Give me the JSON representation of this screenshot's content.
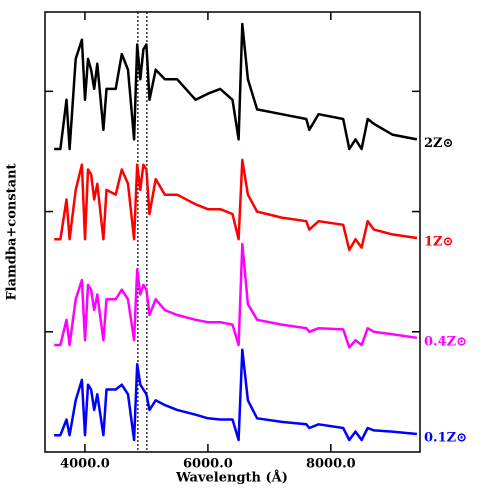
{
  "chart_data": {
    "type": "line",
    "xlabel": "Wavelength (Å)",
    "ylabel": "Flamdba+constant",
    "x": [
      3500,
      3600,
      3700,
      3750,
      3850,
      3950,
      4000,
      4050,
      4100,
      4150,
      4200,
      4300,
      4350,
      4500,
      4600,
      4700,
      4800,
      4850,
      4900,
      4950,
      5000,
      5050,
      5150,
      5300,
      5500,
      5800,
      6000,
      6200,
      6400,
      6500,
      6560,
      6650,
      6800,
      7200,
      7600,
      7650,
      7800,
      8200,
      8300,
      8400,
      8500,
      8600,
      8700,
      9000,
      9400
    ],
    "series": [
      {
        "name": "2Z⊙",
        "color": "#000000",
        "values": [
          2.52,
          2.52,
          2.93,
          2.52,
          3.27,
          3.43,
          2.93,
          3.27,
          3.18,
          3.02,
          3.23,
          2.68,
          3.02,
          3.02,
          3.31,
          3.18,
          2.6,
          3.39,
          3.1,
          3.35,
          3.39,
          2.93,
          3.18,
          3.1,
          3.1,
          2.93,
          2.98,
          3.02,
          2.93,
          2.6,
          3.56,
          3.1,
          2.85,
          2.81,
          2.77,
          2.68,
          2.81,
          2.77,
          2.52,
          2.6,
          2.52,
          2.77,
          2.73,
          2.64,
          2.6
        ]
      },
      {
        "name": "1Z⊙",
        "color": "#ff0000",
        "values": [
          1.77,
          1.77,
          2.1,
          1.77,
          2.18,
          2.39,
          1.77,
          2.35,
          2.31,
          2.1,
          2.23,
          1.77,
          2.18,
          2.14,
          2.35,
          2.23,
          1.77,
          2.39,
          2.18,
          2.39,
          2.35,
          1.98,
          2.27,
          2.14,
          2.14,
          2.06,
          2.02,
          2.02,
          1.98,
          1.77,
          2.43,
          2.14,
          2.0,
          1.95,
          1.92,
          1.85,
          1.92,
          1.89,
          1.68,
          1.77,
          1.7,
          1.92,
          1.85,
          1.81,
          1.78
        ]
      },
      {
        "name": "0.4Z⊙",
        "color": "#ff00ff",
        "values": [
          0.89,
          0.89,
          1.1,
          0.89,
          1.27,
          1.43,
          0.93,
          1.39,
          1.35,
          1.18,
          1.31,
          0.93,
          1.27,
          1.27,
          1.35,
          1.27,
          0.93,
          1.52,
          1.31,
          1.39,
          1.35,
          1.14,
          1.27,
          1.18,
          1.14,
          1.1,
          1.08,
          1.08,
          1.06,
          0.89,
          1.73,
          1.23,
          1.1,
          1.06,
          1.03,
          1.0,
          1.03,
          1.02,
          0.87,
          0.93,
          0.89,
          1.03,
          1.0,
          0.98,
          0.95
        ]
      },
      {
        "name": "0.1Z⊙",
        "color": "#0000ff",
        "values": [
          0.14,
          0.14,
          0.27,
          0.14,
          0.43,
          0.6,
          0.14,
          0.56,
          0.52,
          0.35,
          0.48,
          0.14,
          0.52,
          0.52,
          0.56,
          0.48,
          0.1,
          0.73,
          0.56,
          0.52,
          0.48,
          0.35,
          0.43,
          0.39,
          0.35,
          0.31,
          0.28,
          0.27,
          0.27,
          0.1,
          0.85,
          0.43,
          0.28,
          0.25,
          0.23,
          0.2,
          0.23,
          0.2,
          0.1,
          0.17,
          0.1,
          0.2,
          0.18,
          0.17,
          0.15
        ]
      }
    ],
    "vlines": [
      4861,
      5007
    ],
    "xlim": [
      3350,
      9450
    ],
    "ylim": [
      0,
      3.66
    ],
    "xticks": [
      {
        "value": 4000,
        "label": "4000.0"
      },
      {
        "value": 6000,
        "label": "6000.0"
      },
      {
        "value": 8000,
        "label": "8000.0"
      }
    ],
    "yticks": [
      1,
      2,
      3
    ],
    "ytick_labels": false,
    "legend": "line-end"
  }
}
